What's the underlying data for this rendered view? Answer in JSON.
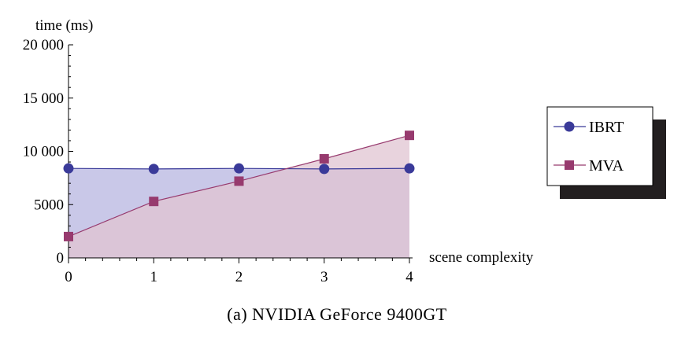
{
  "chart_data": {
    "type": "area",
    "xlabel": "scene complexity",
    "ylabel": "time (ms)",
    "xlim": [
      0,
      4
    ],
    "ylim": [
      0,
      20000
    ],
    "x_ticks": [
      0,
      1,
      2,
      3,
      4
    ],
    "x_tick_labels": [
      "0",
      "1",
      "2",
      "3",
      "4"
    ],
    "y_ticks": [
      0,
      5000,
      10000,
      15000,
      20000
    ],
    "y_tick_labels": [
      "0",
      "5000",
      "10 000",
      "15 000",
      "20 000"
    ],
    "grid": false,
    "legend_position": "right",
    "series": [
      {
        "name": "IBRT",
        "marker": "circle",
        "line_color": "#3a3a99",
        "fill_color": "#c9c8e8",
        "x": [
          0,
          1,
          2,
          3,
          4
        ],
        "y": [
          8400,
          8350,
          8400,
          8350,
          8400
        ]
      },
      {
        "name": "MVA",
        "marker": "square",
        "line_color": "#973a6e",
        "fill_color": "#e0c4d2",
        "x": [
          0,
          1,
          2,
          3,
          4
        ],
        "y": [
          2000,
          5300,
          7200,
          9300,
          11500
        ]
      }
    ],
    "overlap_fill_color": "#c3a6c6"
  },
  "caption": "(a) NVIDIA GeForce 9400GT"
}
